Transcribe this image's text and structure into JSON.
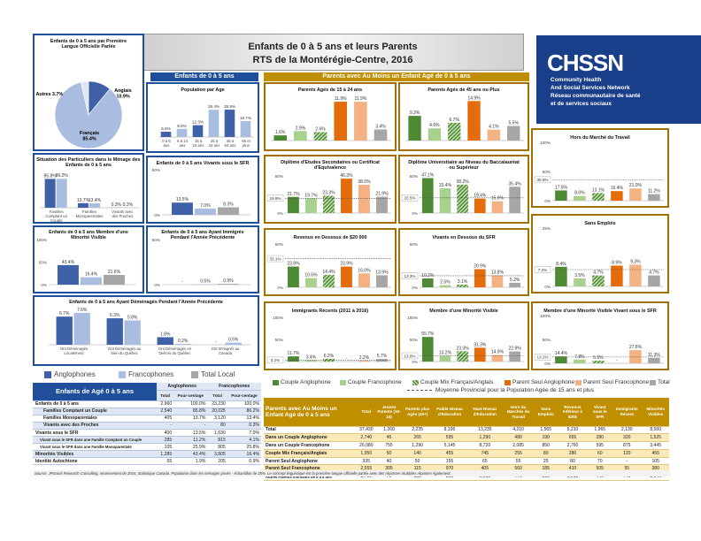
{
  "header": {
    "title": "Enfants de 0 à 5 ans et leurs Parents",
    "subtitle": "RTS de la Montérégie-Centre, 2016"
  },
  "section_left": "Enfants de 0 à 5 ans",
  "section_right": "Parents avec Au Moins un Enfant Agé de 0 à 5 ans",
  "logo": {
    "name": "CHSSN",
    "line1": "Community Health",
    "line2": "And Social Services Network",
    "line3": "Réseau communautaire de santé",
    "line4": "et de services sociaux"
  },
  "colors": {
    "anglo": "#3f61a8",
    "franco": "#a9bde0",
    "local": "#a6a6a6",
    "couple_anglo": "#4e8a34",
    "couple_franco": "#a9d18e",
    "mix": "#4e8a34",
    "seul_anglo": "#e46c0a",
    "seul_franco": "#f4b183",
    "autre": "#a6a6a6"
  },
  "legend_left": [
    "Anglophones",
    "Francophones",
    "Total Local"
  ],
  "legend_right": [
    "Couple Anglophone",
    "Couple Francophone",
    "Couple Mix Français/Anglais",
    "Parent Seul Anglophone",
    "Parent Seul Francophone",
    "Total"
  ],
  "legend_right_note": "Moyenne Provincial pour la Population Agée de 15 ans et plus",
  "chart_data": [
    {
      "type": "pie",
      "title": "Enfants de 0 à 5 ans par Première Langue Officielle Parlée",
      "slices": [
        {
          "label": "Anglais",
          "value": 10.9,
          "text": "10.9%"
        },
        {
          "label": "Français",
          "value": 85.4,
          "text": "85.4%"
        },
        {
          "label": "Autres",
          "value": 3.7,
          "text": "3.7%"
        }
      ]
    },
    {
      "type": "bar",
      "title": "Population par Age",
      "categories": [
        "0 à 5 ans",
        "6 à 14 ans",
        "15 à 24 ans",
        "25 à 44 ans",
        "45 à 64 ans",
        "65 et plus"
      ],
      "values": [
        5.5,
        8.5,
        12.3,
        28.4,
        28.5,
        16.7
      ],
      "labels": [
        "5.5%",
        "8.5%",
        "12.3%",
        "28.4%",
        "28.5%",
        "16.7%"
      ],
      "ylim": [
        0,
        35
      ]
    },
    {
      "type": "bar",
      "title": "Situation des Particuliers dans le Ménage des Enfants de 0 à 5 ans",
      "categories": [
        "Familles Comptant un Couple",
        "Familles Monoparentales",
        "Vivants avec des Proches"
      ],
      "series": [
        {
          "values": [
            85.8,
            13.7,
            0.3
          ],
          "labels": [
            "85.8%",
            "13.7%",
            "0.3%"
          ]
        },
        {
          "values": [
            86.2,
            13.4,
            0.3
          ],
          "labels": [
            "86.2%",
            "13.4%",
            "0.3%"
          ]
        }
      ],
      "ylim": [
        0,
        100
      ]
    },
    {
      "type": "bar",
      "title": "Enfants de 0 à 5 ans Vivants sous le SFR",
      "series": [
        {
          "values": [
            13.5
          ],
          "labels": [
            "13.5%"
          ]
        },
        {
          "values": [
            7.0
          ],
          "labels": [
            "7.0%"
          ]
        },
        {
          "values": [
            8.3
          ],
          "labels": [
            "8.3%"
          ]
        }
      ],
      "yticks": [
        "50%",
        "0%"
      ],
      "ylim": [
        0,
        50
      ]
    },
    {
      "type": "bar",
      "title": "Enfants de 0 à 5 ans Membre d'une Minorité Visible",
      "series": [
        {
          "values": [
            43.4
          ],
          "labels": [
            "43.4%"
          ]
        },
        {
          "values": [
            16.4
          ],
          "labels": [
            "16.4%"
          ]
        },
        {
          "values": [
            21.6
          ],
          "labels": [
            "21.6%"
          ]
        }
      ],
      "yticks": [
        "100%",
        "50%",
        "0%"
      ],
      "ylim": [
        0,
        100
      ]
    },
    {
      "type": "bar",
      "title": "Enfants de 0 à 5 ans Ayant Immigrés Pendant l'Année Précédente",
      "series": [
        {
          "values": [
            0
          ],
          "labels": [
            "-"
          ]
        },
        {
          "values": [
            0.5
          ],
          "labels": [
            "0.5%"
          ]
        },
        {
          "values": [
            0.9
          ],
          "labels": [
            "0.9%"
          ]
        }
      ],
      "yticks": [
        "50%",
        "0%"
      ],
      "ylim": [
        0,
        50
      ]
    },
    {
      "type": "bar",
      "title": "Enfants de 0 à 5 ans Ayant Déménagés Pendant l'Année Précédente",
      "categories": [
        "Ont Déménagés Localement",
        "Ont Déménagés au Sein du Québec",
        "Ont Déménagés en Dehors du Québec",
        "Ont Immigrés au Canada"
      ],
      "series": [
        {
          "name": "Anglophones",
          "values": [
            6.7,
            6.3,
            1.8,
            0
          ],
          "labels": [
            "6.7%",
            "6.3%",
            "1.8%",
            "-"
          ]
        },
        {
          "name": "Francophones",
          "values": [
            7.6,
            5.8,
            0.2,
            0.5
          ],
          "labels": [
            "7.6%",
            "5.8%",
            "0.2%",
            "0.5%"
          ]
        }
      ],
      "ylim": [
        0,
        8
      ]
    },
    {
      "type": "bar",
      "title": "Parents Agés de 15 à 24 ans",
      "values": [
        1.6,
        2.9,
        2.6,
        11.9,
        11.9,
        3.4
      ],
      "labels": [
        "1.6%",
        "2.9%",
        "2.6%",
        "11.9%",
        "11.9%",
        "3.4%"
      ],
      "ylim": [
        0,
        13
      ]
    },
    {
      "type": "bar",
      "title": "Parents Agés de 45 ans ou Plus",
      "values": [
        9.3,
        4.6,
        6.7,
        14.9,
        4.1,
        5.5
      ],
      "labels": [
        "9.3%",
        "4.6%",
        "6.7%",
        "14.9%",
        "4.1%",
        "5.5%"
      ],
      "ylim": [
        0,
        16
      ]
    },
    {
      "type": "bar",
      "title": "Diplôme d'Etudes Secondaires ou Certificat d'Equivalence",
      "values": [
        21.7,
        19.7,
        23.3,
        46.3,
        38.0,
        21.9
      ],
      "labels": [
        "21.7%",
        "19.7%",
        "23.3%",
        "46.3%",
        "38.0%",
        "21.9%"
      ],
      "average": 19.9,
      "average_label": "19.9%",
      "yticks": [
        "50%",
        "0%"
      ],
      "ylim": [
        0,
        50
      ]
    },
    {
      "type": "bar",
      "title": "Diplôme Universitaire au Niveau du Baccalauréat ou Supérieur",
      "values": [
        47.1,
        33.4,
        38.2,
        19.4,
        15.9,
        35.4
      ],
      "labels": [
        "47.1%",
        "33.4%",
        "38.2%",
        "19.4%",
        "15.9%",
        "35.4%"
      ],
      "average": 20.5,
      "average_label": "20.5%",
      "yticks": [
        "50%",
        "0%"
      ],
      "ylim": [
        0,
        50
      ]
    },
    {
      "type": "bar",
      "title": "Revenus en Dessous de $20 000",
      "values": [
        23.9,
        10.6,
        14.4,
        23.9,
        16.0,
        13.9
      ],
      "labels": [
        "23.9%",
        "10.6%",
        "14.4%",
        "23.9%",
        "16.0%",
        "13.9%"
      ],
      "average": 33.1,
      "average_label": "33.1%",
      "yticks": [
        "50%",
        "0%"
      ],
      "ylim": [
        0,
        50
      ]
    },
    {
      "type": "bar",
      "title": "Vivants en Dessous du SFR",
      "values": [
        10.2,
        2.5,
        3.1,
        20.9,
        13.8,
        5.2
      ],
      "labels": [
        "10.2%",
        "2.5%",
        "3.1%",
        "20.9%",
        "13.8%",
        "5.2%"
      ],
      "average": 13.3,
      "average_label": "13.3%",
      "yticks": [
        "50%",
        "0%"
      ],
      "ylim": [
        0,
        50
      ]
    },
    {
      "type": "bar",
      "title": "Immigrants Récents (2011 à 2016)",
      "values": [
        11.7,
        3.4,
        6.2,
        0,
        2.2,
        5.7
      ],
      "labels": [
        "11.7%",
        "3.4%",
        "6.2%",
        "-",
        "2.2%",
        "5.7%"
      ],
      "average": 3.2,
      "average_label": "3.2%",
      "yticks": [
        "100%",
        "50%",
        "0%"
      ],
      "ylim": [
        0,
        100
      ]
    },
    {
      "type": "bar",
      "title": "Membre d'une Minorité Visible",
      "values": [
        55.7,
        13.2,
        23.3,
        31.3,
        14.9,
        22.9
      ],
      "labels": [
        "55.7%",
        "13.2%",
        "23.3%",
        "31.3%",
        "14.9%",
        "22.9%"
      ],
      "average": 13.0,
      "average_label": "13.0%",
      "yticks": [
        "100%",
        "50%",
        "0%"
      ],
      "ylim": [
        0,
        100
      ]
    },
    {
      "type": "bar",
      "title": "Hors du Marché du Travail",
      "values": [
        17.5,
        8.0,
        13.1,
        16.4,
        21.0,
        11.2
      ],
      "labels": [
        "17.5%",
        "8.0%",
        "13.1%",
        "16.4%",
        "21.0%",
        "11.2%"
      ],
      "average": 35.8,
      "average_label": "35.8%",
      "yticks": [
        "100%",
        "50%",
        "0%"
      ],
      "ylim": [
        0,
        100
      ]
    },
    {
      "type": "bar",
      "title": "Sans Emplois",
      "values": [
        8.4,
        3.5,
        4.7,
        8.9,
        9.3,
        4.7
      ],
      "labels": [
        "8.4%",
        "3.5%",
        "4.7%",
        "8.9%",
        "9.3%",
        "4.7%"
      ],
      "average": 7.2,
      "average_label": "7.2%",
      "yticks": [
        "25%",
        "0%"
      ],
      "ylim": [
        0,
        25
      ]
    },
    {
      "type": "bar",
      "title": "Membre d'une Minorité Visible Vivant sous le SFR",
      "values": [
        14.4,
        7.8,
        5.5,
        0,
        27.6,
        11.3
      ],
      "labels": [
        "14.4%",
        "7.8%",
        "5.5%",
        "-",
        "27.6%",
        "11.3%"
      ],
      "average": 13.2,
      "average_label": "13.2%",
      "yticks": [
        "100%",
        "50%",
        "0%"
      ],
      "ylim": [
        0,
        100
      ]
    },
    {
      "type": "table",
      "title": "Enfants de Agé 0 à 5 ans",
      "groups": [
        "Anglophones",
        "Francophones"
      ],
      "columns": [
        "Total",
        "Pour-centage",
        "Total",
        "Pour-centage"
      ],
      "rows": [
        [
          "Enfants de 0 à 5 ans",
          "2,960",
          "100.0%",
          "23,230",
          "100.0%"
        ],
        [
          "Familles Comptant un Couple",
          "2,540",
          "85.8%",
          "20,025",
          "86.2%"
        ],
        [
          "Familles Monoparentales",
          "405",
          "13.7%",
          "3,120",
          "13.4%"
        ],
        [
          "Vivants avec des Proches",
          "-",
          "-",
          "80",
          "0.3%"
        ],
        [
          "Vivants sous le SFR",
          "400",
          "13.5%",
          "1,630",
          "7.0%"
        ],
        [
          "Vivant sous le SFR dans une Famille Comptant un Couple",
          "285",
          "11.2%",
          "815",
          "4.1%"
        ],
        [
          "Vivant sous le SFR dans une Famille Monoparentale",
          "105",
          "25.9%",
          "805",
          "25.8%"
        ],
        [
          "Minorités Visibles",
          "1,285",
          "43.4%",
          "3,805",
          "16.4%"
        ],
        [
          "Identité Autochtone",
          "55",
          "1.9%",
          "205",
          "0.9%"
        ]
      ]
    },
    {
      "type": "table",
      "title": "Parents avec Au Moins un Enfant Agé de 0 à 5 ans",
      "columns": [
        "Total",
        "Jeunes Parents (15-24)",
        "Parents plus Agés (45+)",
        "Faible Niveau d'Education",
        "Haut Niveau d'Education",
        "Hors du Marchés du Travail",
        "Sans Emplois",
        "Revenus Inférieur à $20k",
        "Vivant sous le SFR",
        "Immigrants Récent",
        "Minorités Visibles"
      ],
      "rows": [
        [
          "Total",
          "37,430",
          "1,260",
          "2,235",
          "8,195",
          "13,235",
          "4,210",
          "1,565",
          "5,210",
          "1,965",
          "2,130",
          "8,560"
        ],
        [
          "Dans un Couple Anglophone",
          "2,740",
          "45",
          "265",
          "595",
          "1,290",
          "480",
          "190",
          "655",
          "280",
          "320",
          "1,525"
        ],
        [
          "Dans un Couple Francophone",
          "26,080",
          "755",
          "1,290",
          "5,145",
          "8,720",
          "2,085",
          "850",
          "2,760",
          "595",
          "875",
          "3,445"
        ],
        [
          "Couple Mix Français/Anglais",
          "1,950",
          "50",
          "140",
          "455",
          "745",
          "255",
          "80",
          "280",
          "60",
          "120",
          "455"
        ],
        [
          "Parent Seul Anglophone",
          "335",
          "40",
          "50",
          "155",
          "65",
          "55",
          "25",
          "80",
          "70",
          "-",
          "105"
        ],
        [
          "Parent Seul Francophone",
          "2,555",
          "305",
          "115",
          "970",
          "405",
          "560",
          "185",
          "410",
          "505",
          "55",
          "380"
        ],
        [
          "Autres Parents d'Enfants de 0 à 5 ans",
          "3,765",
          "70",
          "355",
          "865",
          "2,015",
          "770",
          "235",
          "1,010",
          "445",
          "740",
          "2,640"
        ]
      ]
    }
  ],
  "source": "Source: JPocock Research Consulting, recensement de 2016, Statistique Canada. Population dans les ménages privés - échantillon de 25%. Le concept linguistique est la première langue officielle parlée avec des réponses multiples réparties également."
}
